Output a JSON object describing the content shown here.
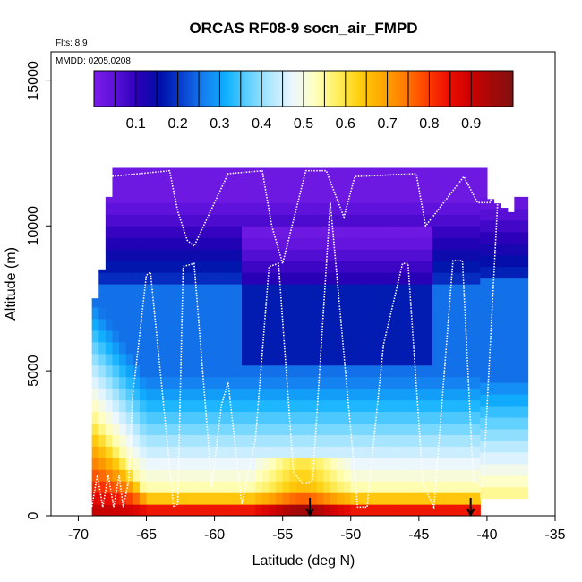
{
  "chart_data": {
    "type": "heatmap",
    "title": "ORCAS RF08-9 socn_air_FMPD",
    "xlabel": "Latitude (deg N)",
    "ylabel": "Altitude (m)",
    "xlim": [
      -72,
      -35
    ],
    "ylim": [
      0,
      16000
    ],
    "x_ticks": [
      "-70",
      "-65",
      "-60",
      "-55",
      "-50",
      "-45",
      "-40",
      "-35"
    ],
    "y_ticks": [
      "0",
      "5000",
      "10000",
      "15000"
    ],
    "annotation_flights": "Flts: 8,9",
    "annotation_dates": "MMDD: 0205,0208",
    "colorbar": {
      "range": [
        0,
        1
      ],
      "tick_labels": [
        "0.1",
        "0.2",
        "0.3",
        "0.4",
        "0.5",
        "0.6",
        "0.7",
        "0.8",
        "0.9"
      ],
      "colors": [
        "#7a1ee8",
        "#5a10d8",
        "#2a00b8",
        "#0010a8",
        "#0a40d0",
        "#1480f0",
        "#10b0ff",
        "#60d0ff",
        "#b0e8ff",
        "#ecf6ff",
        "#ffffc0",
        "#fff060",
        "#ffd010",
        "#ffaa00",
        "#ff8000",
        "#ff4400",
        "#ee1000",
        "#d00000",
        "#a80808",
        "#801010"
      ]
    },
    "surface_markers_lat": [
      -53,
      -41.2
    ],
    "flight_track": [
      [
        -70.7,
        1200
      ],
      [
        -70.5,
        300
      ],
      [
        -70.2,
        1400
      ],
      [
        -69.8,
        300
      ],
      [
        -69.4,
        1400
      ],
      [
        -69.0,
        300
      ],
      [
        -68.6,
        1400
      ],
      [
        -68.2,
        300
      ],
      [
        -67.8,
        1400
      ],
      [
        -67.4,
        300
      ],
      [
        -67.0,
        1400
      ],
      [
        -66.7,
        300
      ],
      [
        -66.3,
        1200
      ],
      [
        -66.0,
        4200
      ],
      [
        -65.6,
        5800
      ],
      [
        -65.0,
        8300
      ],
      [
        -64.7,
        8400
      ],
      [
        -63.0,
        300
      ],
      [
        -62.7,
        400
      ],
      [
        -62.3,
        8600
      ],
      [
        -61.5,
        8700
      ],
      [
        -60.2,
        1000
      ],
      [
        -59.5,
        3800
      ],
      [
        -59.0,
        4600
      ],
      [
        -58.0,
        400
      ],
      [
        -57.0,
        2600
      ],
      [
        -56.0,
        8600
      ],
      [
        -55.3,
        8700
      ],
      [
        -54.2,
        1500
      ],
      [
        -53.5,
        1100
      ],
      [
        -52.8,
        1200
      ],
      [
        -51.5,
        10800
      ],
      [
        -49.5,
        300
      ],
      [
        -48.8,
        300
      ],
      [
        -47.6,
        5900
      ],
      [
        -46.2,
        8700
      ],
      [
        -45.8,
        8700
      ],
      [
        -44.7,
        1100
      ],
      [
        -43.9,
        300
      ],
      [
        -42.5,
        8800
      ],
      [
        -41.8,
        8800
      ],
      [
        -41.0,
        1200
      ],
      [
        -40.3,
        1000
      ],
      [
        -39.2,
        11000
      ],
      [
        -38.6,
        12000
      ]
    ],
    "flight_track_upper": [
      [
        -67.7,
        11700
      ],
      [
        -63.3,
        11900
      ],
      [
        -62.7,
        10500
      ],
      [
        -62.0,
        9500
      ],
      [
        -61.5,
        9300
      ],
      [
        -59.0,
        11800
      ],
      [
        -56.5,
        11900
      ],
      [
        -55.8,
        10000
      ],
      [
        -55.0,
        8700
      ],
      [
        -53.3,
        11900
      ],
      [
        -51.8,
        11900
      ],
      [
        -50.5,
        10300
      ],
      [
        -49.7,
        11700
      ],
      [
        -45.2,
        11800
      ],
      [
        -44.5,
        10000
      ],
      [
        -41.7,
        11700
      ],
      [
        -40.7,
        10800
      ],
      [
        -39.8,
        10800
      ],
      [
        -38.9,
        11700
      ]
    ]
  }
}
